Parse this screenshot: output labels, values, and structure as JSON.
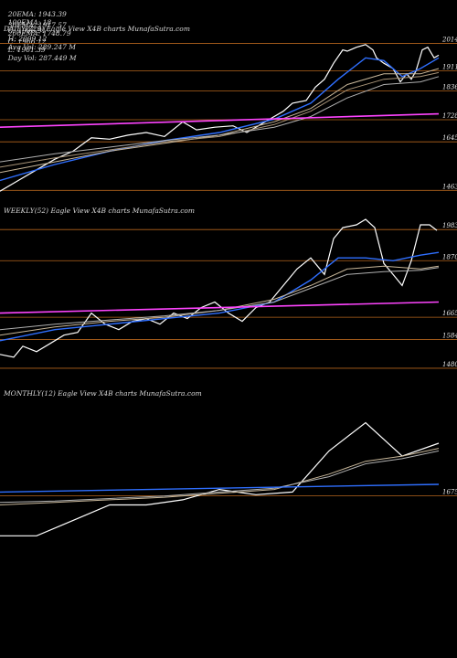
{
  "header": {
    "line1": [
      "20EMA: 1943.39",
      "100EMA: 18",
      "C: 1996.91",
      "H: 2009.12",
      "Avg Vol: 289.247 M"
    ],
    "line2": [
      "30EMA: 1917.57",
      "200EMA: 1748.79",
      "C: 1966.12",
      "L: 1961.39",
      "Day Vol: 287.449 M"
    ]
  },
  "chart_data": [
    {
      "type": "line",
      "title": "DAILY(229) Eagle  View  X4B charts MunafaSutra.com",
      "ylim": [
        1440,
        2040
      ],
      "ticks": [
        2014,
        1911,
        1836,
        1728,
        1645,
        1463
      ],
      "hlines": [
        {
          "y": 2014,
          "color": "#b5651d"
        },
        {
          "y": 1911,
          "color": "#b5651d"
        },
        {
          "y": 1836,
          "color": "#b5651d"
        },
        {
          "y": 1728,
          "color": "#b5651d"
        },
        {
          "y": 1645,
          "color": "#b5651d"
        },
        {
          "y": 1463,
          "color": "#b5651d"
        }
      ],
      "series": [
        {
          "role": "price",
          "color": "#ffffff",
          "x": [
            0,
            20,
            40,
            60,
            80,
            100,
            120,
            140,
            160,
            180,
            200,
            215,
            235,
            255,
            270,
            285,
            300,
            310,
            320,
            335,
            345,
            355,
            365,
            375,
            380,
            390,
            400,
            408,
            412,
            420,
            430,
            438,
            445,
            450,
            455,
            462,
            468,
            475,
            480
          ],
          "values": [
            1460,
            1500,
            1540,
            1580,
            1610,
            1660,
            1655,
            1670,
            1680,
            1665,
            1720,
            1690,
            1700,
            1705,
            1680,
            1710,
            1740,
            1760,
            1790,
            1800,
            1850,
            1880,
            1940,
            1990,
            1985,
            2000,
            2010,
            1990,
            1960,
            1940,
            1920,
            1870,
            1900,
            1880,
            1910,
            1990,
            2000,
            1960,
            1970
          ]
        },
        {
          "role": "ema-blue",
          "color": "#2f6fff",
          "x": [
            0,
            60,
            120,
            180,
            240,
            300,
            340,
            370,
            400,
            420,
            440,
            460,
            480
          ],
          "values": [
            1500,
            1560,
            1610,
            1650,
            1680,
            1730,
            1790,
            1880,
            1960,
            1950,
            1890,
            1920,
            1960
          ]
        },
        {
          "role": "ema-tan-1",
          "color": "#c8b79a",
          "x": [
            0,
            60,
            120,
            180,
            240,
            300,
            340,
            380,
            420,
            460,
            480
          ],
          "values": [
            1530,
            1570,
            1610,
            1640,
            1670,
            1720,
            1770,
            1860,
            1900,
            1900,
            1920
          ]
        },
        {
          "role": "ema-tan-2",
          "color": "#a89478",
          "x": [
            0,
            60,
            120,
            180,
            240,
            300,
            340,
            380,
            420,
            460,
            480
          ],
          "values": [
            1550,
            1585,
            1615,
            1645,
            1665,
            1710,
            1760,
            1840,
            1880,
            1890,
            1905
          ]
        },
        {
          "role": "ema-grey",
          "color": "#b0b0b0",
          "x": [
            0,
            60,
            120,
            180,
            240,
            300,
            340,
            380,
            420,
            460,
            480
          ],
          "values": [
            1570,
            1600,
            1625,
            1650,
            1670,
            1700,
            1740,
            1810,
            1860,
            1870,
            1890
          ]
        },
        {
          "role": "trend-magenta",
          "color": "#ff44ff",
          "x": [
            0,
            480
          ],
          "values": [
            1700,
            1750
          ]
        }
      ]
    },
    {
      "type": "line",
      "title": "WEEKLY(52) Eagle  View  X4B charts MunafaSutra.com",
      "ylim": [
        1440,
        2020
      ],
      "ticks": [
        1983,
        1870,
        1665,
        1584,
        1480
      ],
      "hlines": [
        {
          "y": 1983,
          "color": "#b5651d"
        },
        {
          "y": 1870,
          "color": "#b5651d"
        },
        {
          "y": 1665,
          "color": "#b5651d"
        },
        {
          "y": 1584,
          "color": "#b5651d"
        },
        {
          "y": 1480,
          "color": "#b5651d"
        }
      ],
      "series": [
        {
          "role": "price",
          "color": "#ffffff",
          "x": [
            0,
            15,
            25,
            40,
            55,
            70,
            85,
            100,
            115,
            130,
            145,
            160,
            175,
            190,
            205,
            220,
            235,
            250,
            265,
            280,
            295,
            310,
            325,
            340,
            355,
            365,
            375,
            390,
            400,
            410,
            420,
            430,
            440,
            450,
            460,
            470,
            478
          ],
          "values": [
            1530,
            1520,
            1560,
            1540,
            1570,
            1600,
            1610,
            1680,
            1640,
            1620,
            1650,
            1660,
            1640,
            1680,
            1660,
            1700,
            1720,
            1680,
            1650,
            1700,
            1720,
            1780,
            1840,
            1880,
            1820,
            1950,
            1990,
            2000,
            2020,
            1990,
            1860,
            1820,
            1780,
            1870,
            2000,
            2000,
            1980
          ]
        },
        {
          "role": "ema-blue",
          "color": "#2f6fff",
          "x": [
            0,
            60,
            120,
            180,
            240,
            300,
            340,
            370,
            400,
            430,
            460,
            480
          ],
          "values": [
            1580,
            1620,
            1640,
            1660,
            1680,
            1720,
            1800,
            1880,
            1880,
            1870,
            1890,
            1900
          ]
        },
        {
          "role": "ema-tan",
          "color": "#c8b79a",
          "x": [
            0,
            60,
            120,
            180,
            240,
            300,
            340,
            380,
            420,
            460,
            480
          ],
          "values": [
            1600,
            1630,
            1650,
            1665,
            1690,
            1730,
            1780,
            1840,
            1850,
            1840,
            1850
          ]
        },
        {
          "role": "ema-grey",
          "color": "#b0b0b0",
          "x": [
            0,
            60,
            120,
            180,
            240,
            300,
            340,
            380,
            420,
            460,
            480
          ],
          "values": [
            1620,
            1640,
            1655,
            1670,
            1690,
            1720,
            1770,
            1820,
            1830,
            1835,
            1845
          ]
        },
        {
          "role": "trend-magenta",
          "color": "#ff44ff",
          "x": [
            0,
            480
          ],
          "values": [
            1680,
            1720
          ]
        }
      ]
    },
    {
      "type": "line",
      "title": "MONTHLY(12) Eagle  View  X4B charts MunafaSutra.com",
      "ylim": [
        1400,
        2040
      ],
      "ticks": [
        1675
      ],
      "hlines": [
        {
          "y": 1675,
          "color": "#b5651d"
        }
      ],
      "series": [
        {
          "role": "price",
          "color": "#ffffff",
          "x": [
            0,
            40,
            80,
            120,
            160,
            200,
            240,
            280,
            320,
            360,
            400,
            440,
            480
          ],
          "values": [
            1520,
            1520,
            1580,
            1640,
            1640,
            1660,
            1700,
            1680,
            1690,
            1850,
            1960,
            1830,
            1880
          ]
        },
        {
          "role": "ema-tan",
          "color": "#c8b79a",
          "x": [
            0,
            60,
            120,
            180,
            240,
            300,
            360,
            400,
            440,
            480
          ],
          "values": [
            1640,
            1650,
            1660,
            1670,
            1685,
            1700,
            1760,
            1810,
            1830,
            1860
          ]
        },
        {
          "role": "ema-grey",
          "color": "#b0b0b0",
          "x": [
            0,
            60,
            120,
            180,
            240,
            300,
            360,
            400,
            440,
            480
          ],
          "values": [
            1650,
            1655,
            1665,
            1675,
            1690,
            1705,
            1750,
            1800,
            1820,
            1850
          ]
        },
        {
          "role": "ema-blue",
          "color": "#2f6fff",
          "x": [
            0,
            480
          ],
          "values": [
            1690,
            1720
          ]
        }
      ]
    }
  ]
}
